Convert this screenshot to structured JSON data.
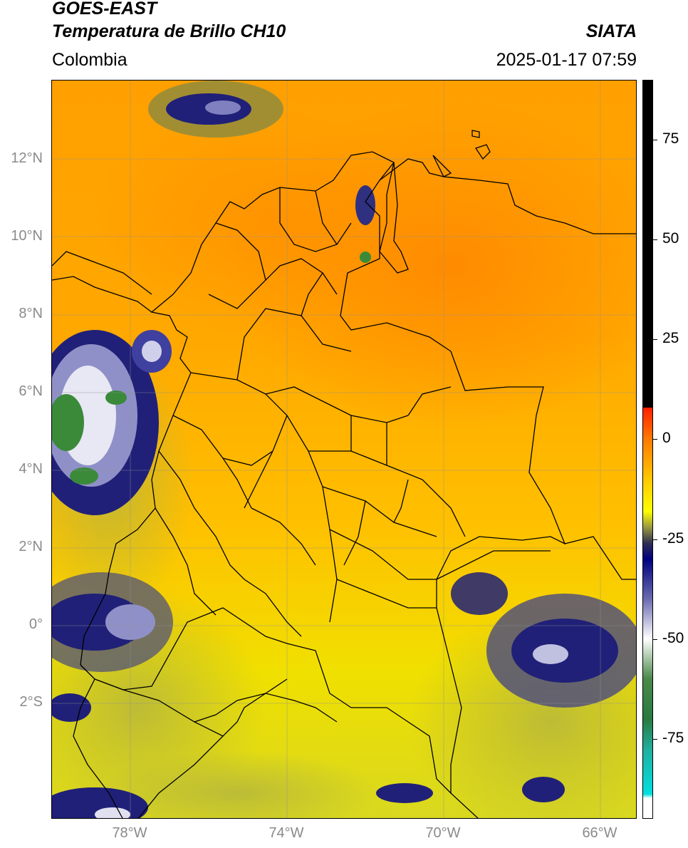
{
  "header": {
    "satellite": "GOES-EAST",
    "product": "Temperatura de Brillo CH10",
    "region": "Colombia",
    "organization": "SIATA",
    "datetime": "2025-01-17 07:59"
  },
  "map": {
    "lat_labels": [
      "12°N",
      "10°N",
      "8°N",
      "6°N",
      "4°N",
      "2°N",
      "0°",
      "2°S"
    ],
    "lon_labels": [
      "78°W",
      "74°W",
      "70°W",
      "66°W"
    ],
    "extent": {
      "lon_min": -80.0,
      "lon_max": -65.0,
      "lat_min": -5.0,
      "lat_max": 14.0
    },
    "graticule": true,
    "colors": {
      "warm_orange": "#ff8c00",
      "orange": "#ffa500",
      "yellow": "#ffd700",
      "olive": "#c8c832",
      "navy_cloud": "#1c1c7a",
      "white_cloud": "#f0f0f0",
      "green_cloud": "#3a8a3a",
      "borders": "#000000"
    }
  },
  "colorbar": {
    "tick_labels": [
      "75",
      "50",
      "25",
      "0",
      "-25",
      "-50",
      "-75"
    ],
    "tick_values": [
      75,
      50,
      25,
      0,
      -25,
      -50,
      -75
    ],
    "range": [
      -95,
      90
    ],
    "stops": [
      {
        "value": 90,
        "color": "#000000"
      },
      {
        "value": 8,
        "color": "#000000"
      },
      {
        "value": 7.9,
        "color": "#ff2000"
      },
      {
        "value": 0,
        "color": "#ff7a00"
      },
      {
        "value": -10,
        "color": "#ffc800"
      },
      {
        "value": -18,
        "color": "#ffff00"
      },
      {
        "value": -22,
        "color": "#9a9a40"
      },
      {
        "value": -26,
        "color": "#303050"
      },
      {
        "value": -30,
        "color": "#000080"
      },
      {
        "value": -40,
        "color": "#6a6ab0"
      },
      {
        "value": -50,
        "color": "#ffffff"
      },
      {
        "value": -60,
        "color": "#4a8a4a"
      },
      {
        "value": -70,
        "color": "#2a7a40"
      },
      {
        "value": -78,
        "color": "#20b0a0"
      },
      {
        "value": -89,
        "color": "#00e0e0"
      },
      {
        "value": -90,
        "color": "#ffffff"
      },
      {
        "value": -95,
        "color": "#ffffff"
      }
    ]
  }
}
